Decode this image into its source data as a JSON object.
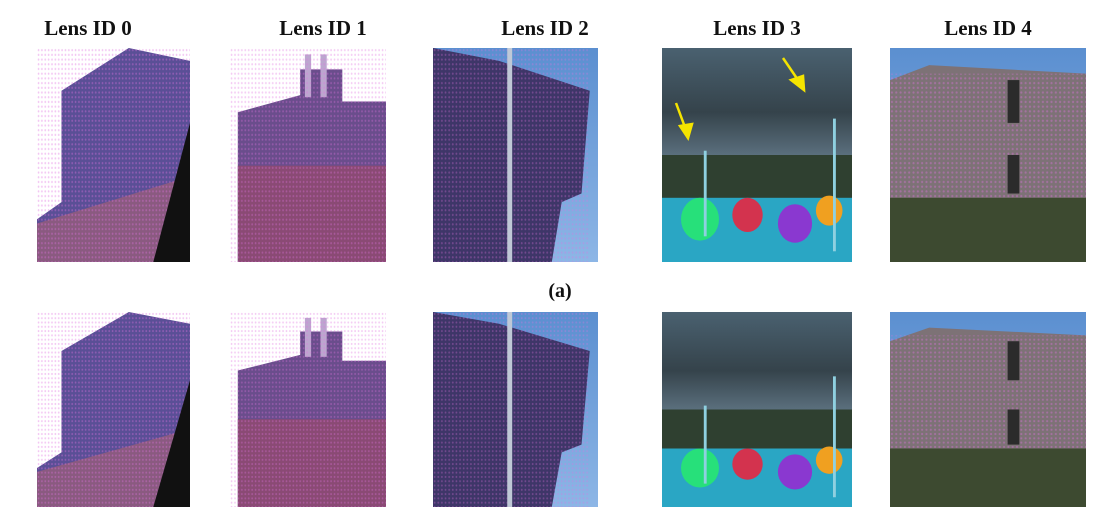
{
  "column_labels": [
    "Lens ID 0",
    "Lens ID 1",
    "Lens ID 2",
    "Lens ID 3",
    "Lens ID 4"
  ],
  "row_captions": [
    "(a)"
  ]
}
